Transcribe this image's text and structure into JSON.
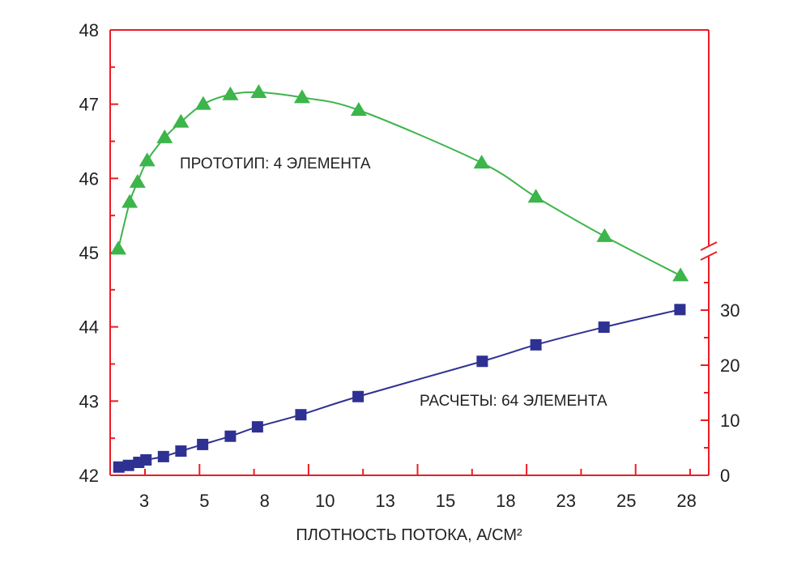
{
  "chart_data": {
    "type": "line",
    "title": "",
    "xlabel": "ПЛОТНОСТЬ ПОТОКА, А/СМ²",
    "x_tick_labels": [
      "3",
      "5",
      "8",
      "10",
      "13",
      "15",
      "18",
      "23",
      "25",
      "28"
    ],
    "x_note": "x values are given in tick-label index units (0 = label '3', 9 = label '28'); the printed tick labels are not evenly spaced numerically",
    "x_range": [
      -0.55,
      9.35
    ],
    "left_axis": {
      "range": [
        42,
        48
      ],
      "tick_labels": [
        "42",
        "43",
        "44",
        "45",
        "46",
        "47",
        "48"
      ]
    },
    "right_axis": {
      "range": [
        0,
        30
      ],
      "tick_labels": [
        "0",
        "10",
        "20",
        "30"
      ],
      "break": true
    },
    "grid": false,
    "series": [
      {
        "name": "ПРОТОТИП: 4 ЭЛЕМЕНТА",
        "axis": "left",
        "marker": "triangle",
        "color": "#3cb54a",
        "x": [
          -0.43,
          -0.24,
          -0.11,
          0.05,
          0.34,
          0.61,
          0.98,
          1.43,
          1.9,
          2.62,
          3.56,
          5.6,
          6.5,
          7.64,
          8.9
        ],
        "y": [
          45.05,
          45.68,
          45.95,
          46.24,
          46.55,
          46.76,
          47.0,
          47.13,
          47.16,
          47.09,
          46.92,
          46.21,
          45.75,
          45.22,
          44.69
        ]
      },
      {
        "name": "РАСЧЕТЫ: 64 ЭЛЕМЕНТА",
        "axis": "right",
        "marker": "square",
        "color": "#2e3192",
        "x": [
          -0.42,
          -0.26,
          -0.09,
          0.03,
          0.32,
          0.61,
          0.97,
          1.43,
          1.88,
          2.6,
          3.55,
          5.61,
          6.5,
          7.63,
          8.89
        ],
        "y": [
          1.5,
          1.8,
          2.35,
          2.8,
          3.4,
          4.4,
          5.6,
          7.1,
          8.8,
          11.0,
          14.3,
          20.7,
          23.7,
          26.9,
          30.1
        ]
      }
    ],
    "axis_color": "#ed1c24"
  }
}
